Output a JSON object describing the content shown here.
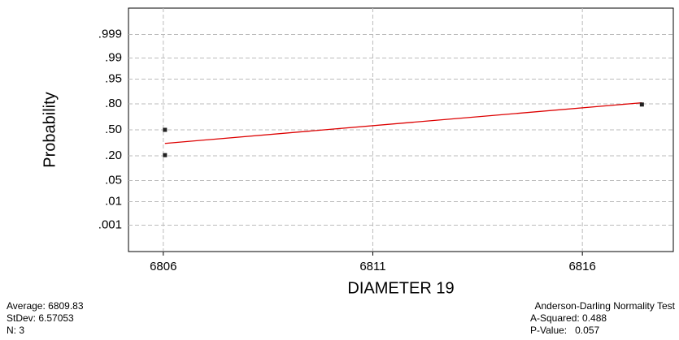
{
  "chart_data": {
    "type": "probability",
    "xlabel": "DIAMETER 19",
    "ylabel": "Probability",
    "x": [
      6806.04,
      6806.04,
      6817.42
    ],
    "values": [
      0.206,
      0.5,
      0.794
    ],
    "color": "#222222",
    "fit_line": {
      "x": [
        6806.04,
        6817.42
      ],
      "values": [
        0.33,
        0.81
      ],
      "color": "#dd0000"
    },
    "xlim": [
      6805.17,
      6818.17
    ],
    "xticks": [
      6806,
      6811,
      6816
    ],
    "ylim": [
      4e-05,
      0.99996
    ],
    "yticks": [
      {
        "value": 0.001,
        "label": ".001"
      },
      {
        "value": 0.01,
        "label": ".01"
      },
      {
        "value": 0.05,
        "label": ".05"
      },
      {
        "value": 0.2,
        "label": ".20"
      },
      {
        "value": 0.5,
        "label": ".50"
      },
      {
        "value": 0.8,
        "label": ".80"
      },
      {
        "value": 0.95,
        "label": ".95"
      },
      {
        "value": 0.99,
        "label": ".99"
      },
      {
        "value": 0.999,
        "label": ".999"
      }
    ],
    "grid": true,
    "stats_left": [
      "Average: 6809.83",
      "StDev: 6.57053",
      "N: 3"
    ],
    "stats_right": [
      "Anderson-Darling Normality Test",
      "A-Squared: 0.488",
      "P-Value:   0.057"
    ]
  }
}
